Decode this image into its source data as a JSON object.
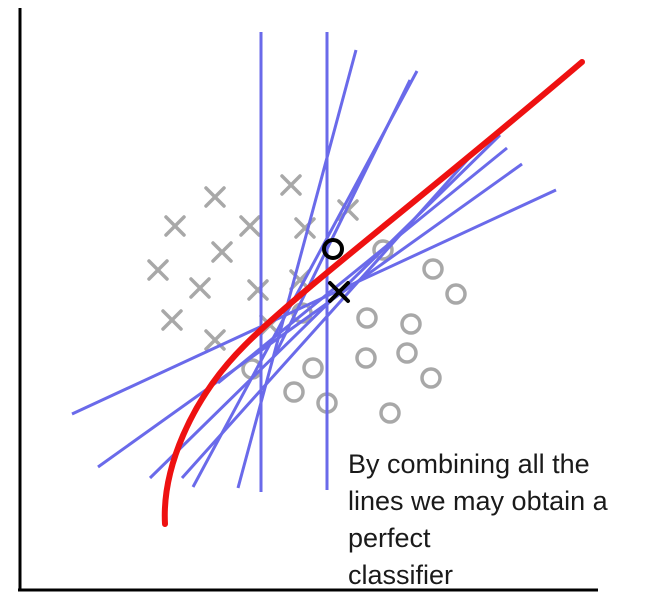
{
  "caption": {
    "line1": "By combining all the",
    "line2": "lines we may obtain a",
    "line3": "perfect",
    "line4": "classifier"
  },
  "colors": {
    "axes": "#000000",
    "weak_lines": "#6a6aea",
    "combined_boundary": "#ee1111",
    "training_points": "#a8a8a8",
    "test_points": "#000000"
  },
  "legend_symbols": {
    "class_a": "cross",
    "class_b": "circle"
  }
}
